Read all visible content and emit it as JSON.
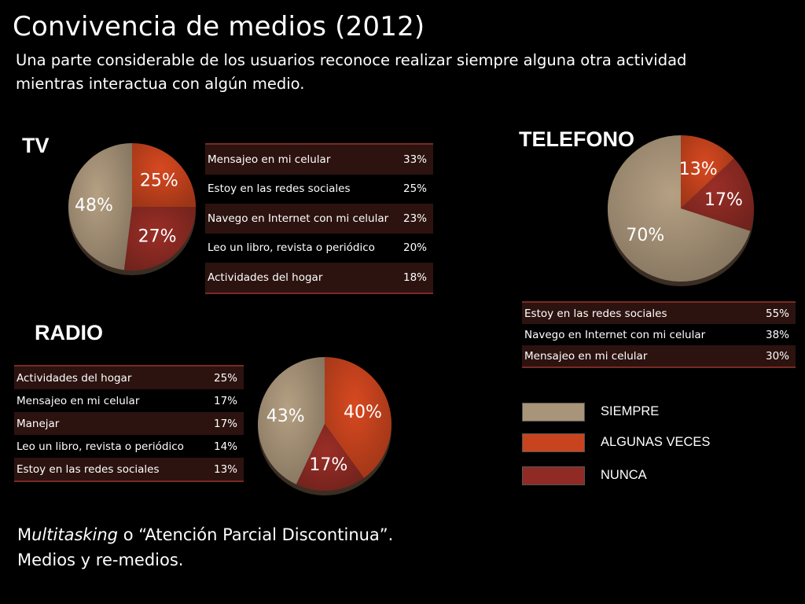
{
  "slide": {
    "title": "Convivencia de medios (2012)",
    "subtitle": "Una parte considerable de los usuarios reconoce realizar siempre alguna otra actividad mientras interactua con algún medio.",
    "footer_line1_prefix": "M",
    "footer_line1_italic": "ultitasking",
    "footer_line1_rest": " o “Atención Parcial Discontinua”.",
    "footer_line2": "Medios y re-medios."
  },
  "headings": {
    "tv": "TV",
    "telefono": "TELEFONO",
    "radio": "RADIO"
  },
  "colors": {
    "siempre": "#a89479",
    "algunas_veces": "#c8441e",
    "nunca": "#8f2b24"
  },
  "legend": [
    {
      "label": "SIEMPRE",
      "color": "#a89479"
    },
    {
      "label": "ALGUNAS VECES",
      "color": "#c8441e"
    },
    {
      "label": "NUNCA",
      "color": "#8f2b24"
    }
  ],
  "tables": {
    "tv": [
      {
        "activity": "Mensajeo en mi celular",
        "value": "33%"
      },
      {
        "activity": "Estoy en las redes sociales",
        "value": "25%"
      },
      {
        "activity": "Navego en Internet con mi celular",
        "value": "23%"
      },
      {
        "activity": "Leo un libro, revista o periódico",
        "value": "20%"
      },
      {
        "activity": "Actividades del hogar",
        "value": "18%"
      }
    ],
    "telefono": [
      {
        "activity": "Estoy en las redes sociales",
        "value": "55%"
      },
      {
        "activity": "Navego en Internet con mi celular",
        "value": "38%"
      },
      {
        "activity": "Mensajeo en mi celular",
        "value": "30%"
      }
    ],
    "radio": [
      {
        "activity": "Actividades del hogar",
        "value": "25%"
      },
      {
        "activity": "Mensajeo en mi celular",
        "value": "17%"
      },
      {
        "activity": "Manejar",
        "value": "17%"
      },
      {
        "activity": "Leo un libro, revista o periódico",
        "value": "14%"
      },
      {
        "activity": "Estoy en las redes sociales",
        "value": "13%"
      }
    ]
  },
  "chart_data": [
    {
      "type": "pie",
      "title": "TV",
      "categories": [
        "ALGUNAS VECES",
        "NUNCA",
        "SIEMPRE"
      ],
      "values": [
        25,
        27,
        48
      ],
      "labels": [
        "25%",
        "27%",
        "48%"
      ],
      "legend_position": "bottom-right"
    },
    {
      "type": "pie",
      "title": "TELEFONO",
      "categories": [
        "ALGUNAS VECES",
        "NUNCA",
        "SIEMPRE"
      ],
      "values": [
        13,
        17,
        70
      ],
      "labels": [
        "13%",
        "17%",
        "70%"
      ],
      "legend_position": "bottom-right"
    },
    {
      "type": "pie",
      "title": "RADIO",
      "categories": [
        "ALGUNAS VECES",
        "NUNCA",
        "SIEMPRE"
      ],
      "values": [
        40,
        17,
        43
      ],
      "labels": [
        "40%",
        "17%",
        "43%"
      ],
      "legend_position": "bottom-right"
    }
  ]
}
